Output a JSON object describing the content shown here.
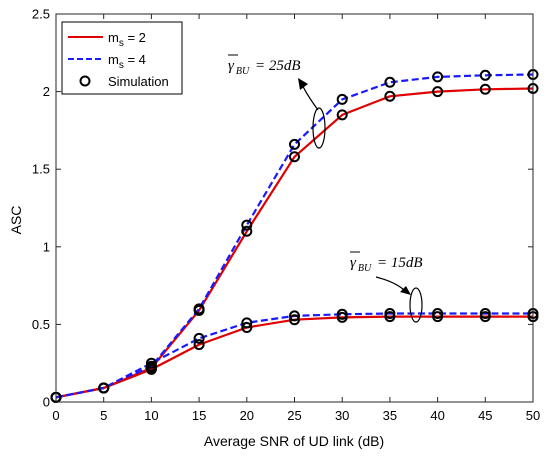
{
  "chart_data": {
    "type": "line",
    "xlabel": "Average SNR of UD link (dB)",
    "ylabel": "ASC",
    "xlim": [
      0,
      50
    ],
    "ylim": [
      0,
      2.5
    ],
    "x_ticks": [
      0,
      5,
      10,
      15,
      20,
      25,
      30,
      35,
      40,
      45,
      50
    ],
    "y_ticks": [
      0,
      0.5,
      1,
      1.5,
      2,
      2.5
    ],
    "grid": false,
    "legend_position": "top-left",
    "legend": [
      {
        "label": "m",
        "sub": "s",
        "suffix": " = 2"
      },
      {
        "label": "m",
        "sub": "s",
        "suffix": " = 4"
      },
      {
        "label": "Simulation",
        "sub": "",
        "suffix": ""
      }
    ],
    "x": [
      0,
      5,
      10,
      15,
      20,
      25,
      30,
      35,
      40,
      45,
      50
    ],
    "series": [
      {
        "group": "25dB",
        "style": "solid",
        "color": "#e00000",
        "values": [
          0.03,
          0.09,
          0.22,
          0.59,
          1.1,
          1.58,
          1.85,
          1.97,
          2.0,
          2.015,
          2.02
        ]
      },
      {
        "group": "25dB",
        "style": "dashed",
        "color": "#1a1aff",
        "values": [
          0.03,
          0.09,
          0.23,
          0.6,
          1.14,
          1.66,
          1.95,
          2.06,
          2.095,
          2.105,
          2.11
        ]
      },
      {
        "group": "15dB",
        "style": "solid",
        "color": "#e00000",
        "values": [
          0.03,
          0.09,
          0.21,
          0.37,
          0.48,
          0.53,
          0.545,
          0.55,
          0.55,
          0.55,
          0.55
        ]
      },
      {
        "group": "15dB",
        "style": "dashed",
        "color": "#1a1aff",
        "values": [
          0.03,
          0.09,
          0.25,
          0.41,
          0.51,
          0.555,
          0.565,
          0.57,
          0.57,
          0.57,
          0.57
        ]
      }
    ],
    "annotations": [
      {
        "symbol": "γ",
        "sub": "BU",
        "text": " = 25dB"
      },
      {
        "symbol": "γ",
        "sub": "BU",
        "text": " = 15dB"
      }
    ]
  }
}
